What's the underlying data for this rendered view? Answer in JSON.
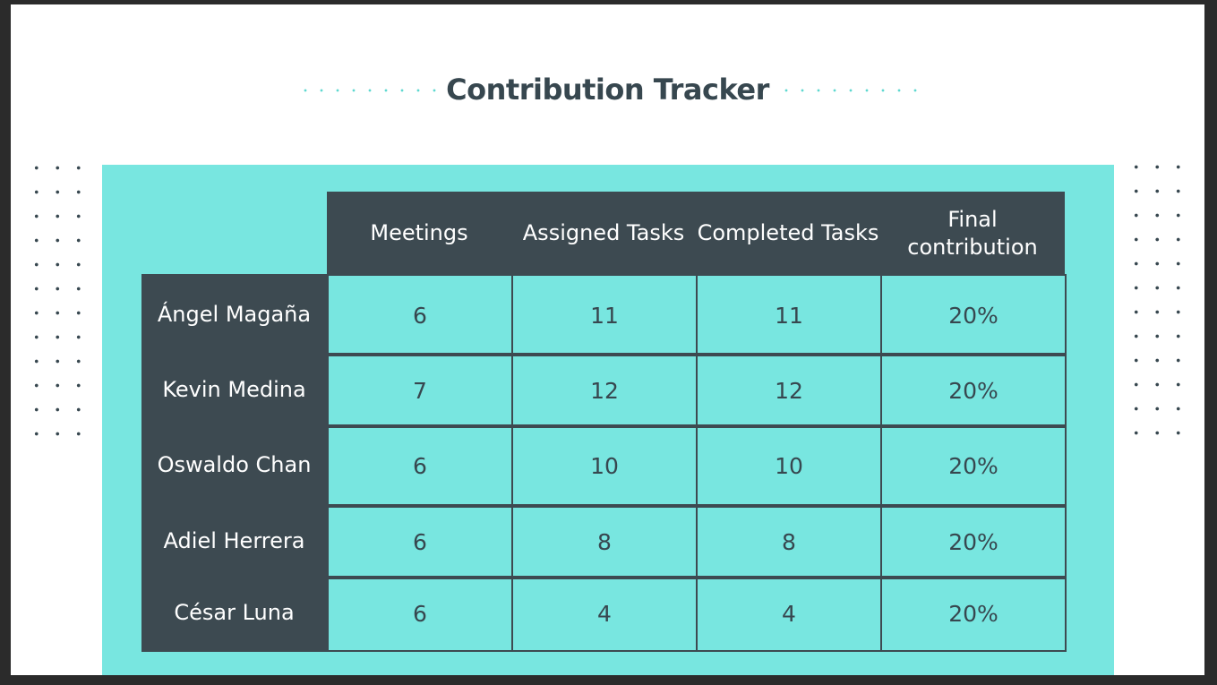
{
  "title": "Contribution Tracker",
  "colors": {
    "panel": "#78e6e0",
    "dark": "#3d4a51",
    "accent_dots": "#5fd8d0"
  },
  "table": {
    "columns": [
      "Meetings",
      "Assigned Tasks",
      "Completed Tasks",
      "Final contribution"
    ],
    "rows": [
      {
        "name": "Ángel Magaña",
        "values": [
          "6",
          "11",
          "11",
          "20%"
        ]
      },
      {
        "name": "Kevin Medina",
        "values": [
          "7",
          "12",
          "12",
          "20%"
        ]
      },
      {
        "name": "Oswaldo Chan",
        "values": [
          "6",
          "10",
          "10",
          "20%"
        ]
      },
      {
        "name": "Adiel Herrera",
        "values": [
          "6",
          "8",
          "8",
          "20%"
        ]
      },
      {
        "name": "César Luna",
        "values": [
          "6",
          "4",
          "4",
          "20%"
        ]
      }
    ]
  }
}
